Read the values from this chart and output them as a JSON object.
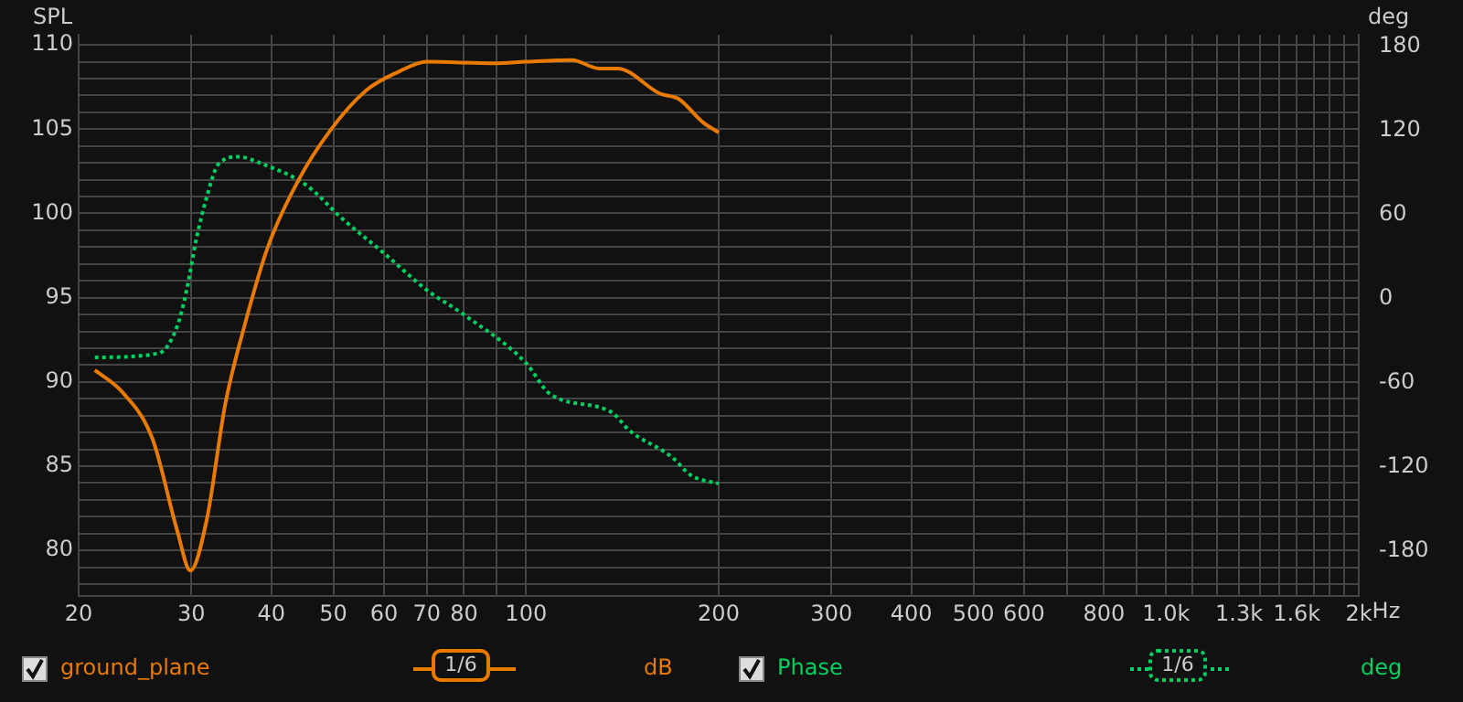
{
  "chart_data": {
    "type": "line",
    "ylabel": "SPL",
    "y2label": "deg",
    "annotations": [
      "1/6",
      "dB",
      "1/6",
      "deg"
    ],
    "xlim": [
      20,
      2000
    ],
    "xticks": [
      20,
      30,
      40,
      50,
      60,
      70,
      80,
      {
        "value": 90,
        "label": null
      },
      100,
      200,
      300,
      400,
      500,
      600,
      {
        "value": 700,
        "label": null
      },
      800,
      {
        "value": 900,
        "label": null
      },
      {
        "value": 1000,
        "label": "1.0k"
      },
      {
        "value": 1100,
        "label": null
      },
      {
        "value": 1200,
        "label": null
      },
      {
        "value": 1300,
        "label": "1.3k"
      },
      {
        "value": 1400,
        "label": null
      },
      {
        "value": 1500,
        "label": null
      },
      {
        "value": 1600,
        "label": "1.6k"
      },
      {
        "value": 1700,
        "label": null
      },
      {
        "value": 1800,
        "label": null
      },
      {
        "value": 1900,
        "label": null
      },
      {
        "value": 2000,
        "label": "2k"
      }
    ],
    "xlabel": "Hz",
    "ylim": [
      77.3,
      110.6
    ],
    "yticks": [
      {
        "value": 78,
        "label": null
      },
      {
        "value": 79,
        "label": null
      },
      80,
      {
        "value": 81,
        "label": null
      },
      {
        "value": 82,
        "label": null
      },
      {
        "value": 83,
        "label": null
      },
      {
        "value": 84,
        "label": null
      },
      85,
      {
        "value": 86,
        "label": null
      },
      {
        "value": 87,
        "label": null
      },
      {
        "value": 88,
        "label": null
      },
      {
        "value": 89,
        "label": null
      },
      90,
      {
        "value": 91,
        "label": null
      },
      {
        "value": 92,
        "label": null
      },
      {
        "value": 93,
        "label": null
      },
      {
        "value": 94,
        "label": null
      },
      95,
      {
        "value": 96,
        "label": null
      },
      {
        "value": 97,
        "label": null
      },
      {
        "value": 98,
        "label": null
      },
      {
        "value": 99,
        "label": null
      },
      100,
      {
        "value": 101,
        "label": null
      },
      {
        "value": 102,
        "label": null
      },
      {
        "value": 103,
        "label": null
      },
      {
        "value": 104,
        "label": null
      },
      105,
      {
        "value": 106,
        "label": null
      },
      {
        "value": 107,
        "label": null
      },
      {
        "value": 108,
        "label": null
      },
      {
        "value": 109,
        "label": null
      },
      110
    ],
    "y2lim": [
      -212,
      188
    ],
    "y2ticks": [
      -180,
      -120,
      -60,
      0,
      60,
      120,
      180
    ],
    "log": "x",
    "grid": true,
    "legend": "bottom",
    "marker": "none",
    "series": [
      {
        "name": "ground_plane",
        "color": "#e87a00",
        "line_style": "solid",
        "x": [
          21.2,
          23.4,
          26.1,
          28.5,
          29.9,
          31.7,
          33.9,
          36.3,
          39.5,
          44.0,
          49.4,
          56.3,
          63.2,
          70.0,
          89.2,
          100,
          118,
          130,
          139,
          162,
          173,
          189,
          200
        ],
        "values": [
          90.7,
          89.4,
          86.6,
          81.2,
          78.8,
          81.8,
          88.7,
          93.3,
          98.0,
          101.9,
          104.9,
          107.3,
          108.4,
          109.0,
          108.9,
          109.0,
          109.1,
          108.6,
          108.6,
          107.1,
          106.8,
          105.4,
          104.8
        ]
      },
      {
        "name": "Phase",
        "color": "#00d060",
        "line_style": "dotted",
        "axis": "y2",
        "x": [
          21.2,
          26.7,
          28.5,
          29.5,
          30.5,
          31.6,
          33.1,
          35.6,
          38.7,
          45.3,
          51.6,
          60.1,
          70.0,
          79.7,
          100,
          109,
          136,
          145,
          169,
          181,
          200
        ],
        "values": [
          -42,
          -39,
          -20,
          6,
          41,
          70,
          96,
          101,
          96,
          81,
          57,
          32,
          6,
          -11,
          -46,
          -68,
          -81,
          -94,
          -113,
          -126,
          -132
        ]
      }
    ]
  }
}
